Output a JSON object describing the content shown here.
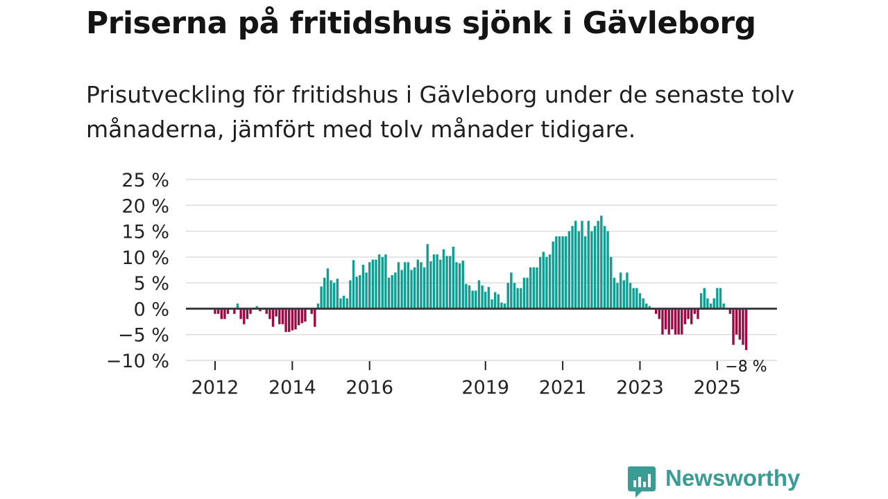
{
  "title": "Priserna på fritidshus sjönk i Gävleborg",
  "subtitle": "Prisutveckling för fritidshus i Gävleborg under de senaste tolv månaderna, jämfört med tolv månader tidigare.",
  "brand": "Newsworthy",
  "colors": {
    "positive": "#0f9e92",
    "negative": "#9b0a45",
    "grid": "#dcdcdc",
    "zero": "#3a3a3a",
    "brand": "#3a9c93"
  },
  "chart_data": {
    "type": "bar",
    "title": "Priserna på fritidshus sjönk i Gävleborg",
    "xlabel": "",
    "ylabel": "",
    "ylim": [
      -10,
      25
    ],
    "y_ticks": [
      25,
      20,
      15,
      10,
      5,
      0,
      -5,
      -10
    ],
    "y_tick_labels": [
      "25 %",
      "20 %",
      "15 %",
      "10 %",
      "5 %",
      "0 %",
      "−5 %",
      "−10 %"
    ],
    "x_ticks": [
      {
        "label": "2012",
        "index": 0
      },
      {
        "label": "2014",
        "index": 24
      },
      {
        "label": "2016",
        "index": 48
      },
      {
        "label": "2019",
        "index": 84
      },
      {
        "label": "2021",
        "index": 108
      },
      {
        "label": "2023",
        "index": 132
      },
      {
        "label": "2025",
        "index": 156
      }
    ],
    "grid": true,
    "annotation": {
      "label": "−8 %",
      "index": 165
    },
    "values": [
      -1,
      -1,
      -2,
      -2,
      -1,
      0,
      -1,
      1,
      -2,
      -3,
      -2,
      -1,
      0,
      0.5,
      -0.5,
      0.2,
      -1,
      -2,
      -3.5,
      -1.5,
      -3,
      -3,
      -4.5,
      -4.5,
      -4.2,
      -4,
      -3.2,
      -2.8,
      -2.5,
      0,
      -1,
      -3.5,
      1,
      4.3,
      6,
      7.8,
      5.5,
      5,
      5.8,
      2,
      2.5,
      2,
      5.5,
      9.4,
      6.2,
      6.5,
      8.5,
      7,
      9,
      9.5,
      9.5,
      10.5,
      10,
      10.5,
      6,
      6.5,
      7,
      9,
      7.5,
      9,
      9,
      7.5,
      8,
      9.5,
      9,
      8,
      12.5,
      9.2,
      10.5,
      10.5,
      9.5,
      11.5,
      10.2,
      10.2,
      12,
      9,
      8.8,
      9.3,
      4.8,
      4.5,
      3.5,
      3.5,
      5.5,
      4.5,
      3.3,
      4.2,
      1.8,
      3.2,
      2.8,
      1.2,
      1,
      5,
      7,
      5,
      4,
      4,
      6,
      6,
      8,
      8,
      8,
      10,
      11,
      10,
      10.5,
      13,
      14,
      14,
      14,
      14,
      15,
      16,
      17,
      15,
      17,
      14,
      17,
      15,
      16,
      17,
      18,
      16,
      15,
      10,
      6,
      5,
      7,
      5.5,
      7,
      5,
      4,
      4,
      3,
      2,
      1,
      0.5,
      0,
      -1,
      -2,
      -5,
      -4,
      -5,
      -4,
      -5,
      -5,
      -5,
      -3,
      -2,
      -3,
      -1,
      -2,
      3,
      4,
      2,
      1,
      2,
      4,
      4,
      1,
      0,
      -1,
      -7,
      -5,
      -6,
      -7,
      -8
    ]
  }
}
